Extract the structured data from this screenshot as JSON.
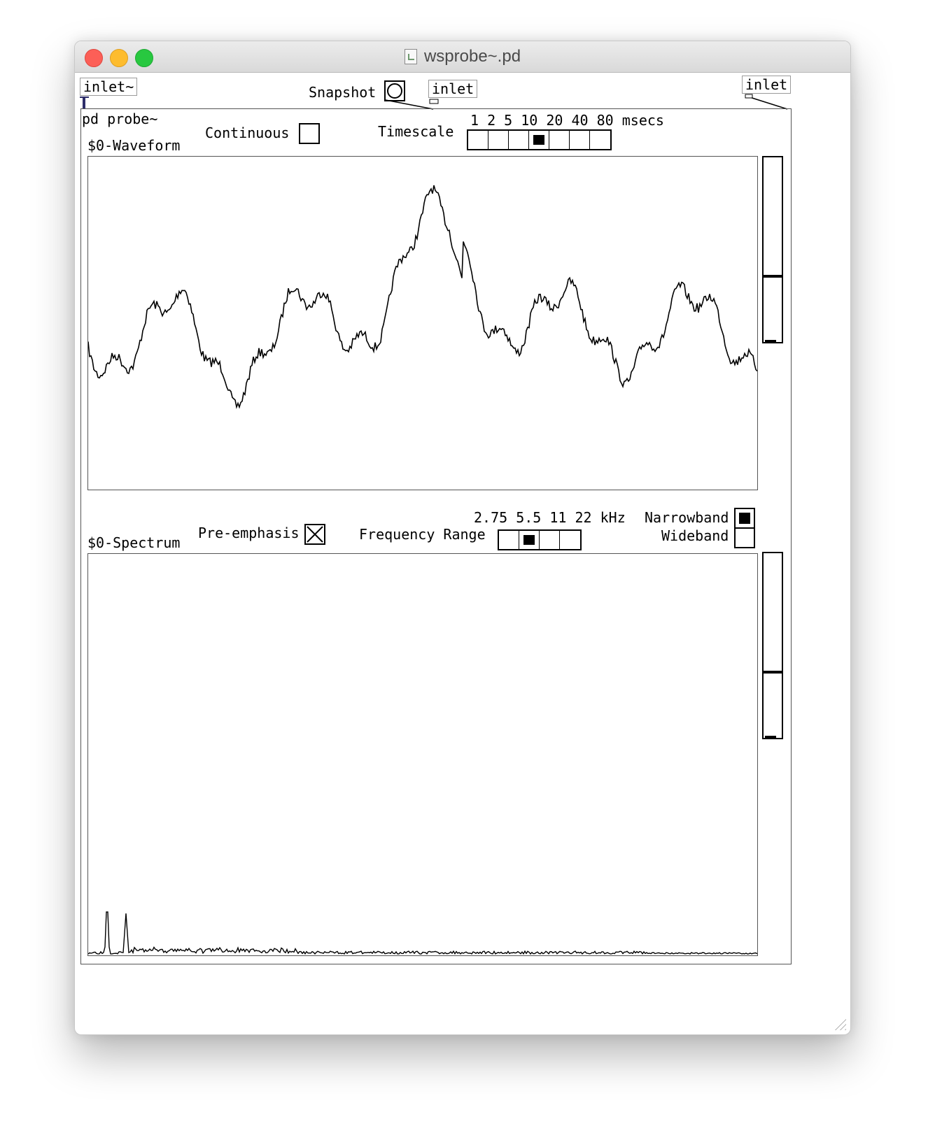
{
  "window": {
    "title": "wsprobe~.pd"
  },
  "inlets": {
    "signal": "inlet~",
    "snapshot": "inlet",
    "right": "inlet"
  },
  "snapshot": {
    "label": "Snapshot"
  },
  "subpatch": {
    "label": "pd probe~"
  },
  "waveform": {
    "label": "$0-Waveform",
    "continuous_label": "Continuous",
    "continuous_checked": false,
    "timescale_label": "Timescale",
    "timescale_values": "1  2  5  10  20  40  80  msecs",
    "timescale_options": [
      "1",
      "2",
      "5",
      "10",
      "20",
      "40",
      "80"
    ],
    "timescale_selected_index": 3,
    "gain_level": 0.35
  },
  "spectrum": {
    "label": "$0-Spectrum",
    "preemphasis_label": "Pre-emphasis",
    "preemphasis_checked": true,
    "freq_label": "Frequency Range",
    "freq_values": "2.75  5.5  11  22  kHz",
    "freq_options": [
      "2.75",
      "5.5",
      "11",
      "22"
    ],
    "freq_selected_index": 1,
    "narrowband_label": "Narrowband",
    "narrowband_checked": true,
    "wideband_label": "Wideband",
    "wideband_checked": false,
    "gain_level": 0.35
  },
  "colors": {
    "line": "#000000",
    "border": "#555555"
  }
}
